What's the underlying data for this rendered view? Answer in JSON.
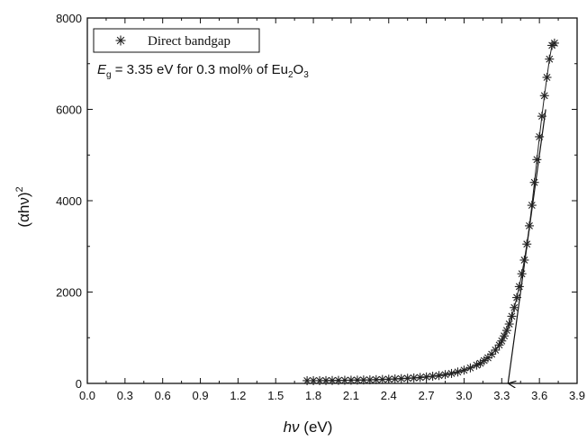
{
  "chart_data": {
    "type": "scatter",
    "xlabel": "hν (eV)",
    "xlabel_italic": "hν",
    "xlabel_unit": " (eV)",
    "ylabel_base": "(αhν)",
    "ylabel_sup": "2",
    "xlim": [
      0.0,
      3.9
    ],
    "ylim": [
      0,
      8000
    ],
    "x_ticks": [
      "0.0",
      "0.3",
      "0.6",
      "0.9",
      "1.2",
      "1.5",
      "1.8",
      "2.1",
      "2.4",
      "2.7",
      "3.0",
      "3.3",
      "3.6",
      "3.9"
    ],
    "y_ticks": [
      "0",
      "2000",
      "4000",
      "6000",
      "8000"
    ],
    "grid": false,
    "legend_position": "top-left",
    "series": [
      {
        "name": "Direct bandgap",
        "marker": "asterisk",
        "color": "#222222",
        "x": [
          1.75,
          1.8,
          1.85,
          1.9,
          1.95,
          2.0,
          2.05,
          2.1,
          2.15,
          2.2,
          2.25,
          2.3,
          2.35,
          2.4,
          2.45,
          2.5,
          2.55,
          2.6,
          2.65,
          2.7,
          2.75,
          2.8,
          2.85,
          2.9,
          2.95,
          3.0,
          3.05,
          3.1,
          3.13,
          3.16,
          3.19,
          3.22,
          3.25,
          3.28,
          3.3,
          3.32,
          3.34,
          3.36,
          3.38,
          3.4,
          3.42,
          3.44,
          3.46,
          3.48,
          3.5,
          3.52,
          3.54,
          3.56,
          3.58,
          3.6,
          3.62,
          3.64,
          3.66,
          3.68,
          3.7,
          3.72
        ],
        "y": [
          60,
          60,
          60,
          62,
          64,
          66,
          68,
          70,
          72,
          75,
          78,
          82,
          86,
          92,
          98,
          105,
          112,
          120,
          130,
          142,
          156,
          172,
          192,
          218,
          250,
          290,
          340,
          400,
          440,
          500,
          560,
          640,
          730,
          840,
          930,
          1040,
          1160,
          1300,
          1470,
          1660,
          1880,
          2120,
          2400,
          2700,
          3050,
          3450,
          3900,
          4400,
          4900,
          5400,
          5850,
          6300,
          6700,
          7100,
          7400,
          7450
        ]
      }
    ],
    "bandgap_line": {
      "x": [
        3.35,
        3.65
      ],
      "y": [
        0,
        6000
      ]
    },
    "annotation": {
      "prefix_italic": "E",
      "prefix_sub": "g",
      "text_before_sub": " = 3.35 eV for 0.3 mol% of Eu",
      "sub1": "2",
      "mid": "O",
      "sub2": "3"
    }
  }
}
